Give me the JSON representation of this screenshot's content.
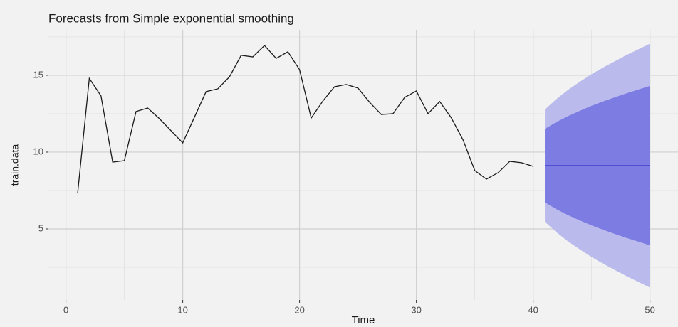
{
  "chart_data": {
    "type": "line",
    "title": "Forecasts from Simple exponential smoothing",
    "xlabel": "Time",
    "ylabel": "train.data",
    "xlim": [
      -1.5,
      52.4
    ],
    "ylim": [
      0.37,
      17.96
    ],
    "xticks": [
      0,
      10,
      20,
      30,
      40,
      50
    ],
    "yticks": [
      5,
      10,
      15
    ],
    "grid": true,
    "bands": [
      {
        "color": "#babaed",
        "x": [
          41,
          42,
          43,
          44,
          45,
          46,
          47,
          48,
          49,
          50
        ],
        "lower": [
          5.47,
          4.78,
          4.18,
          3.66,
          3.17,
          2.73,
          2.32,
          1.92,
          1.55,
          1.18
        ],
        "upper": [
          12.77,
          13.46,
          14.06,
          14.58,
          15.07,
          15.51,
          15.92,
          16.32,
          16.69,
          17.06
        ]
      },
      {
        "color": "#7c7ce3",
        "x": [
          41,
          42,
          43,
          44,
          45,
          46,
          47,
          48,
          49,
          50
        ],
        "lower": [
          6.73,
          6.28,
          5.89,
          5.55,
          5.23,
          4.94,
          4.67,
          4.41,
          4.17,
          3.93
        ],
        "upper": [
          11.51,
          11.96,
          12.35,
          12.69,
          13.01,
          13.3,
          13.57,
          13.83,
          14.07,
          14.31
        ]
      }
    ],
    "series": [
      {
        "color": "#1a1a1a",
        "x": [
          1,
          2,
          3,
          4,
          5,
          6,
          7,
          8,
          9,
          10,
          11,
          12,
          13,
          14,
          15,
          16,
          17,
          18,
          19,
          20,
          21,
          22,
          23,
          24,
          25,
          26,
          27,
          28,
          29,
          30,
          31,
          32,
          33,
          34,
          35,
          36,
          37,
          38,
          39,
          40
        ],
        "values": [
          7.31,
          14.8,
          13.66,
          9.35,
          9.44,
          12.64,
          12.87,
          12.18,
          11.39,
          10.6,
          12.27,
          13.94,
          14.12,
          14.9,
          16.3,
          16.2,
          16.94,
          16.1,
          16.53,
          15.37,
          12.22,
          13.33,
          14.26,
          14.4,
          14.17,
          13.24,
          12.45,
          12.5,
          13.56,
          13.98,
          12.5,
          13.29,
          12.22,
          10.79,
          8.8,
          8.24,
          8.66,
          9.4,
          9.31,
          9.07
        ]
      },
      {
        "color": "#3232c8",
        "x": [
          41,
          42,
          43,
          44,
          45,
          46,
          47,
          48,
          49,
          50
        ],
        "values": [
          9.12,
          9.12,
          9.12,
          9.12,
          9.12,
          9.12,
          9.12,
          9.12,
          9.12,
          9.12
        ]
      }
    ]
  }
}
